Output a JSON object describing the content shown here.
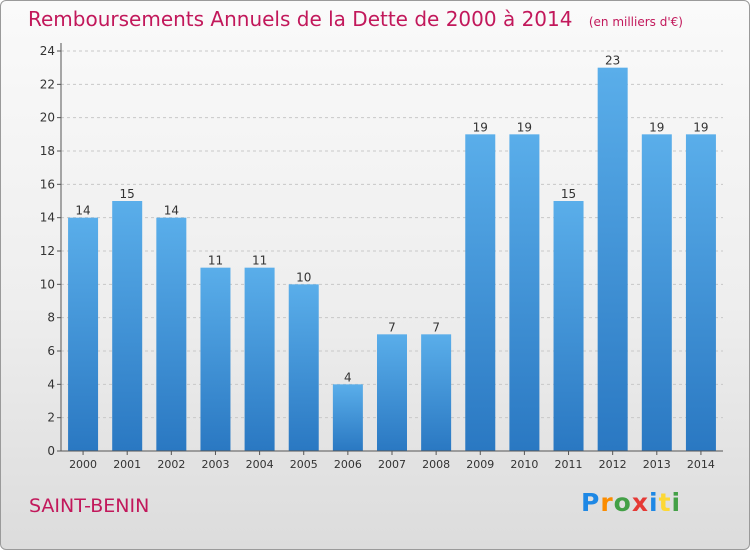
{
  "header": {
    "title": "Remboursements Annuels de la Dette de 2000 à 2014",
    "unit": "(en milliers d'€)"
  },
  "footer": {
    "city": "SAINT-BENIN",
    "logo": "Proxiti"
  },
  "colors": {
    "bar": "#4a9fe0",
    "bar_dark": "#2a78c2",
    "title": "#c2185b"
  },
  "chart_data": {
    "type": "bar",
    "title": "Remboursements Annuels de la Dette de 2000 à 2014",
    "subtitle": "(en milliers d'€)",
    "xlabel": "",
    "ylabel": "",
    "categories": [
      "2000",
      "2001",
      "2002",
      "2003",
      "2004",
      "2005",
      "2006",
      "2007",
      "2008",
      "2009",
      "2010",
      "2011",
      "2012",
      "2013",
      "2014"
    ],
    "values": [
      14,
      15,
      14,
      11,
      11,
      10,
      4,
      7,
      7,
      19,
      19,
      15,
      23,
      19,
      19
    ],
    "ylim": [
      0,
      24
    ],
    "yticks": [
      0,
      2,
      4,
      6,
      8,
      10,
      12,
      14,
      16,
      18,
      20,
      22,
      24
    ],
    "grid": true,
    "data_labels": true
  }
}
